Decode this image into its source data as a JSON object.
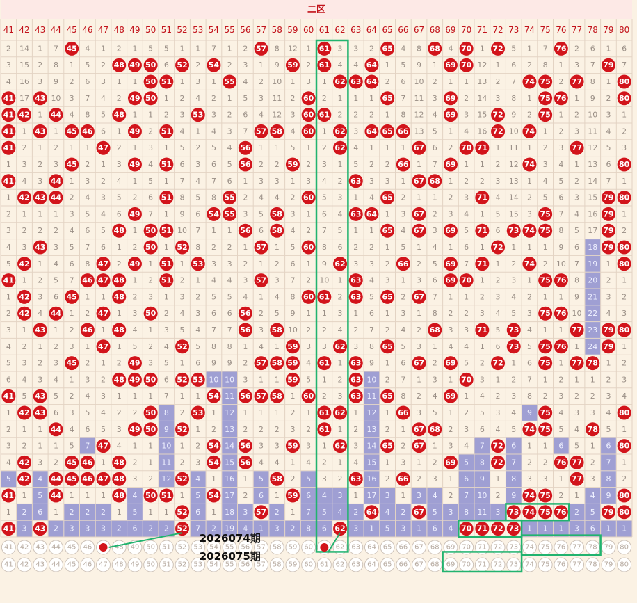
{
  "chart_data": {
    "type": "table",
    "title": "二区",
    "columns": [
      "41",
      "42",
      "43",
      "44",
      "45",
      "46",
      "47",
      "48",
      "49",
      "50",
      "51",
      "52",
      "53",
      "54",
      "55",
      "56",
      "57",
      "58",
      "59",
      "60",
      "61",
      "62",
      "63",
      "64",
      "65",
      "66",
      "67",
      "68",
      "69",
      "70",
      "71",
      "72",
      "73",
      "74",
      "75",
      "76",
      "77",
      "78",
      "79",
      "80"
    ],
    "rows": [
      [
        "2",
        "14",
        "1",
        "7",
        "45",
        "4",
        "1",
        "2",
        "1",
        "5",
        "5",
        "1",
        "1",
        "7",
        "1",
        "2",
        "57",
        "8",
        "12",
        "1",
        "61",
        "3",
        "3",
        "2",
        "65",
        "4",
        "8",
        "68",
        "4",
        "70",
        "1",
        "72",
        "5",
        "1",
        "7",
        "76",
        "2",
        "6",
        "1",
        "6"
      ],
      [
        "3",
        "15",
        "2",
        "8",
        "1",
        "5",
        "2",
        "48",
        "49",
        "50",
        "6",
        "52",
        "2",
        "54",
        "2",
        "3",
        "1",
        "9",
        "59",
        "2",
        "61",
        "4",
        "4",
        "64",
        "1",
        "5",
        "9",
        "1",
        "69",
        "70",
        "12",
        "1",
        "6",
        "2",
        "8",
        "1",
        "3",
        "7",
        "79",
        "7"
      ],
      [
        "4",
        "16",
        "3",
        "9",
        "2",
        "6",
        "3",
        "1",
        "1",
        "50",
        "51",
        "1",
        "3",
        "1",
        "55",
        "4",
        "2",
        "10",
        "1",
        "3",
        "1",
        "62",
        "63",
        "64",
        "2",
        "6",
        "10",
        "2",
        "1",
        "1",
        "13",
        "2",
        "7",
        "74",
        "75",
        "2",
        "77",
        "8",
        "1",
        "80"
      ],
      [
        "41",
        "17",
        "43",
        "10",
        "3",
        "7",
        "4",
        "2",
        "49",
        "50",
        "1",
        "2",
        "4",
        "2",
        "1",
        "5",
        "3",
        "11",
        "2",
        "60",
        "2",
        "1",
        "1",
        "1",
        "65",
        "7",
        "11",
        "3",
        "69",
        "2",
        "14",
        "3",
        "8",
        "1",
        "75",
        "76",
        "1",
        "9",
        "2",
        "80"
      ],
      [
        "41",
        "42",
        "1",
        "44",
        "4",
        "8",
        "5",
        "48",
        "1",
        "1",
        "2",
        "3",
        "53",
        "3",
        "2",
        "6",
        "4",
        "12",
        "3",
        "60",
        "61",
        "2",
        "2",
        "2",
        "1",
        "8",
        "12",
        "4",
        "69",
        "3",
        "15",
        "72",
        "9",
        "2",
        "75",
        "1",
        "2",
        "10",
        "3",
        "1"
      ],
      [
        "41",
        "1",
        "43",
        "1",
        "45",
        "46",
        "6",
        "1",
        "49",
        "2",
        "51",
        "4",
        "1",
        "4",
        "3",
        "7",
        "57",
        "58",
        "4",
        "60",
        "1",
        "62",
        "3",
        "64",
        "65",
        "66",
        "13",
        "5",
        "1",
        "4",
        "16",
        "72",
        "10",
        "74",
        "1",
        "2",
        "3",
        "11",
        "4",
        "2"
      ],
      [
        "41",
        "2",
        "1",
        "2",
        "1",
        "1",
        "47",
        "2",
        "1",
        "3",
        "1",
        "5",
        "2",
        "5",
        "4",
        "56",
        "1",
        "1",
        "5",
        "1",
        "2",
        "62",
        "4",
        "1",
        "1",
        "1",
        "67",
        "6",
        "2",
        "70",
        "71",
        "1",
        "11",
        "1",
        "2",
        "3",
        "77",
        "12",
        "5",
        "3"
      ],
      [
        "1",
        "3",
        "2",
        "3",
        "45",
        "2",
        "1",
        "3",
        "49",
        "4",
        "51",
        "6",
        "3",
        "6",
        "5",
        "56",
        "2",
        "2",
        "59",
        "2",
        "3",
        "1",
        "5",
        "2",
        "2",
        "66",
        "1",
        "7",
        "69",
        "1",
        "1",
        "2",
        "12",
        "74",
        "3",
        "4",
        "1",
        "13",
        "6",
        "80"
      ],
      [
        "41",
        "4",
        "3",
        "44",
        "1",
        "3",
        "2",
        "4",
        "1",
        "5",
        "1",
        "7",
        "4",
        "7",
        "6",
        "1",
        "3",
        "3",
        "1",
        "3",
        "4",
        "2",
        "63",
        "3",
        "3",
        "1",
        "67",
        "68",
        "1",
        "2",
        "2",
        "3",
        "13",
        "1",
        "4",
        "5",
        "2",
        "14",
        "7",
        "1"
      ],
      [
        "1",
        "42",
        "43",
        "44",
        "2",
        "4",
        "3",
        "5",
        "2",
        "6",
        "51",
        "8",
        "5",
        "8",
        "55",
        "2",
        "4",
        "4",
        "2",
        "60",
        "5",
        "3",
        "1",
        "4",
        "65",
        "2",
        "1",
        "1",
        "2",
        "3",
        "71",
        "4",
        "14",
        "2",
        "5",
        "6",
        "3",
        "15",
        "79",
        "80"
      ],
      [
        "2",
        "1",
        "1",
        "1",
        "3",
        "5",
        "4",
        "6",
        "49",
        "7",
        "1",
        "9",
        "6",
        "54",
        "55",
        "3",
        "5",
        "58",
        "3",
        "1",
        "6",
        "4",
        "63",
        "64",
        "1",
        "3",
        "67",
        "2",
        "3",
        "4",
        "1",
        "5",
        "15",
        "3",
        "75",
        "7",
        "4",
        "16",
        "79",
        "1"
      ],
      [
        "3",
        "2",
        "2",
        "2",
        "4",
        "6",
        "5",
        "48",
        "1",
        "50",
        "51",
        "10",
        "7",
        "1",
        "1",
        "56",
        "6",
        "58",
        "4",
        "2",
        "7",
        "5",
        "1",
        "1",
        "65",
        "4",
        "67",
        "3",
        "69",
        "5",
        "71",
        "6",
        "73",
        "74",
        "75",
        "8",
        "5",
        "17",
        "79",
        "2"
      ],
      [
        "4",
        "3",
        "43",
        "3",
        "5",
        "7",
        "6",
        "1",
        "2",
        "50",
        "1",
        "52",
        "8",
        "2",
        "2",
        "1",
        "57",
        "1",
        "5",
        "60",
        "8",
        "6",
        "2",
        "2",
        "1",
        "5",
        "1",
        "4",
        "1",
        "6",
        "1",
        "72",
        "1",
        "1",
        "1",
        "9",
        "6",
        "18",
        "79",
        "80"
      ],
      [
        "5",
        "42",
        "1",
        "4",
        "6",
        "8",
        "47",
        "2",
        "49",
        "1",
        "51",
        "1",
        "53",
        "3",
        "3",
        "2",
        "1",
        "2",
        "6",
        "1",
        "9",
        "62",
        "3",
        "3",
        "2",
        "66",
        "2",
        "5",
        "69",
        "7",
        "71",
        "1",
        "2",
        "74",
        "2",
        "10",
        "7",
        "19",
        "1",
        "80"
      ],
      [
        "41",
        "1",
        "2",
        "5",
        "7",
        "46",
        "47",
        "48",
        "1",
        "2",
        "51",
        "2",
        "1",
        "4",
        "4",
        "3",
        "57",
        "3",
        "7",
        "2",
        "10",
        "1",
        "63",
        "4",
        "3",
        "1",
        "3",
        "6",
        "69",
        "70",
        "1",
        "2",
        "3",
        "1",
        "75",
        "76",
        "8",
        "20",
        "2",
        "1"
      ],
      [
        "1",
        "42",
        "3",
        "6",
        "45",
        "1",
        "1",
        "48",
        "2",
        "3",
        "1",
        "3",
        "2",
        "5",
        "5",
        "4",
        "1",
        "4",
        "8",
        "60",
        "61",
        "2",
        "63",
        "5",
        "65",
        "2",
        "67",
        "7",
        "1",
        "1",
        "2",
        "3",
        "4",
        "2",
        "1",
        "1",
        "9",
        "21",
        "3",
        "2"
      ],
      [
        "2",
        "42",
        "4",
        "44",
        "1",
        "2",
        "47",
        "1",
        "3",
        "50",
        "2",
        "4",
        "3",
        "6",
        "6",
        "56",
        "2",
        "5",
        "9",
        "1",
        "1",
        "3",
        "1",
        "6",
        "1",
        "3",
        "1",
        "8",
        "2",
        "2",
        "3",
        "4",
        "5",
        "3",
        "75",
        "76",
        "10",
        "22",
        "4",
        "3"
      ],
      [
        "3",
        "1",
        "43",
        "1",
        "2",
        "46",
        "1",
        "48",
        "4",
        "1",
        "3",
        "5",
        "4",
        "7",
        "7",
        "56",
        "3",
        "58",
        "10",
        "2",
        "2",
        "4",
        "2",
        "7",
        "2",
        "4",
        "2",
        "68",
        "3",
        "3",
        "71",
        "5",
        "73",
        "4",
        "1",
        "1",
        "77",
        "23",
        "79",
        "80"
      ],
      [
        "4",
        "2",
        "1",
        "2",
        "3",
        "1",
        "47",
        "1",
        "5",
        "2",
        "4",
        "52",
        "5",
        "8",
        "8",
        "1",
        "4",
        "1",
        "59",
        "3",
        "3",
        "62",
        "3",
        "8",
        "65",
        "5",
        "3",
        "1",
        "4",
        "4",
        "1",
        "6",
        "73",
        "5",
        "75",
        "76",
        "1",
        "24",
        "79",
        "1"
      ],
      [
        "5",
        "3",
        "2",
        "3",
        "45",
        "2",
        "1",
        "2",
        "49",
        "3",
        "5",
        "1",
        "6",
        "9",
        "9",
        "2",
        "57",
        "58",
        "59",
        "4",
        "61",
        "1",
        "63",
        "9",
        "1",
        "6",
        "67",
        "2",
        "69",
        "5",
        "2",
        "72",
        "1",
        "6",
        "75",
        "1",
        "77",
        "78",
        "1",
        "2"
      ],
      [
        "6",
        "4",
        "3",
        "4",
        "1",
        "3",
        "2",
        "48",
        "49",
        "50",
        "6",
        "52",
        "53",
        "10",
        "10",
        "3",
        "1",
        "1",
        "59",
        "5",
        "1",
        "2",
        "63",
        "10",
        "2",
        "7",
        "1",
        "3",
        "1",
        "70",
        "3",
        "1",
        "2",
        "7",
        "1",
        "2",
        "1",
        "1",
        "2",
        "3"
      ],
      [
        "41",
        "5",
        "43",
        "5",
        "2",
        "4",
        "3",
        "1",
        "1",
        "1",
        "7",
        "1",
        "1",
        "54",
        "11",
        "56",
        "57",
        "58",
        "1",
        "60",
        "2",
        "3",
        "63",
        "11",
        "65",
        "8",
        "2",
        "4",
        "69",
        "1",
        "4",
        "2",
        "3",
        "8",
        "2",
        "3",
        "2",
        "2",
        "3",
        "4"
      ],
      [
        "1",
        "42",
        "43",
        "6",
        "3",
        "5",
        "4",
        "2",
        "2",
        "50",
        "8",
        "2",
        "53",
        "1",
        "12",
        "1",
        "1",
        "1",
        "2",
        "1",
        "61",
        "62",
        "1",
        "12",
        "1",
        "66",
        "3",
        "5",
        "1",
        "2",
        "5",
        "3",
        "4",
        "9",
        "75",
        "4",
        "3",
        "3",
        "4",
        "80"
      ],
      [
        "2",
        "1",
        "1",
        "44",
        "4",
        "6",
        "5",
        "3",
        "49",
        "50",
        "9",
        "52",
        "1",
        "2",
        "13",
        "2",
        "2",
        "2",
        "3",
        "2",
        "61",
        "1",
        "2",
        "13",
        "2",
        "1",
        "67",
        "68",
        "2",
        "3",
        "6",
        "4",
        "5",
        "74",
        "75",
        "5",
        "4",
        "78",
        "5",
        "1"
      ],
      [
        "3",
        "2",
        "1",
        "1",
        "5",
        "7",
        "47",
        "4",
        "1",
        "1",
        "10",
        "1",
        "2",
        "54",
        "14",
        "56",
        "3",
        "3",
        "59",
        "3",
        "1",
        "62",
        "3",
        "14",
        "65",
        "2",
        "67",
        "1",
        "3",
        "4",
        "7",
        "72",
        "6",
        "1",
        "1",
        "6",
        "5",
        "1",
        "6",
        "80"
      ],
      [
        "4",
        "42",
        "3",
        "2",
        "45",
        "46",
        "1",
        "48",
        "2",
        "1",
        "11",
        "2",
        "3",
        "54",
        "15",
        "56",
        "4",
        "4",
        "1",
        "4",
        "2",
        "1",
        "4",
        "15",
        "1",
        "3",
        "1",
        "2",
        "69",
        "5",
        "8",
        "72",
        "7",
        "2",
        "2",
        "76",
        "77",
        "2",
        "7",
        "1"
      ],
      [
        "5",
        "42",
        "4",
        "44",
        "45",
        "46",
        "47",
        "48",
        "3",
        "2",
        "12",
        "52",
        "4",
        "1",
        "16",
        "1",
        "5",
        "58",
        "2",
        "5",
        "3",
        "2",
        "63",
        "16",
        "2",
        "66",
        "2",
        "3",
        "1",
        "6",
        "9",
        "1",
        "8",
        "3",
        "3",
        "1",
        "77",
        "3",
        "8",
        "2"
      ],
      [
        "41",
        "1",
        "5",
        "44",
        "1",
        "1",
        "1",
        "48",
        "4",
        "50",
        "51",
        "1",
        "5",
        "54",
        "17",
        "2",
        "6",
        "1",
        "59",
        "6",
        "4",
        "3",
        "1",
        "17",
        "3",
        "1",
        "3",
        "4",
        "2",
        "7",
        "10",
        "2",
        "9",
        "74",
        "75",
        "2",
        "1",
        "4",
        "9",
        "80"
      ],
      [
        "1",
        "2",
        "6",
        "1",
        "2",
        "2",
        "2",
        "1",
        "5",
        "1",
        "1",
        "52",
        "6",
        "1",
        "18",
        "3",
        "57",
        "2",
        "1",
        "7",
        "5",
        "4",
        "2",
        "64",
        "4",
        "2",
        "67",
        "5",
        "3",
        "8",
        "11",
        "3",
        "73",
        "74",
        "75",
        "76",
        "2",
        "5",
        "79",
        "80"
      ],
      [
        "41",
        "3",
        "43",
        "2",
        "3",
        "3",
        "3",
        "2",
        "6",
        "2",
        "2",
        "52",
        "7",
        "2",
        "19",
        "4",
        "1",
        "3",
        "2",
        "8",
        "6",
        "62",
        "3",
        "1",
        "5",
        "3",
        "1",
        "6",
        "4",
        "70",
        "71",
        "72",
        "73",
        "1",
        "1",
        "1",
        "3",
        "6",
        "1",
        "1"
      ]
    ],
    "annotations": [
      "2026074期",
      "2026075期"
    ]
  },
  "colors": {
    "background": "#fbf2e4",
    "grid": "#e3d3c3",
    "header_text": "#c2121a",
    "cell_text": "#9a8f86",
    "ball": "#d2141b",
    "bar": "#9f9fd3",
    "bar_text": "#eef0ff",
    "highlight_box": "#21b36f"
  }
}
